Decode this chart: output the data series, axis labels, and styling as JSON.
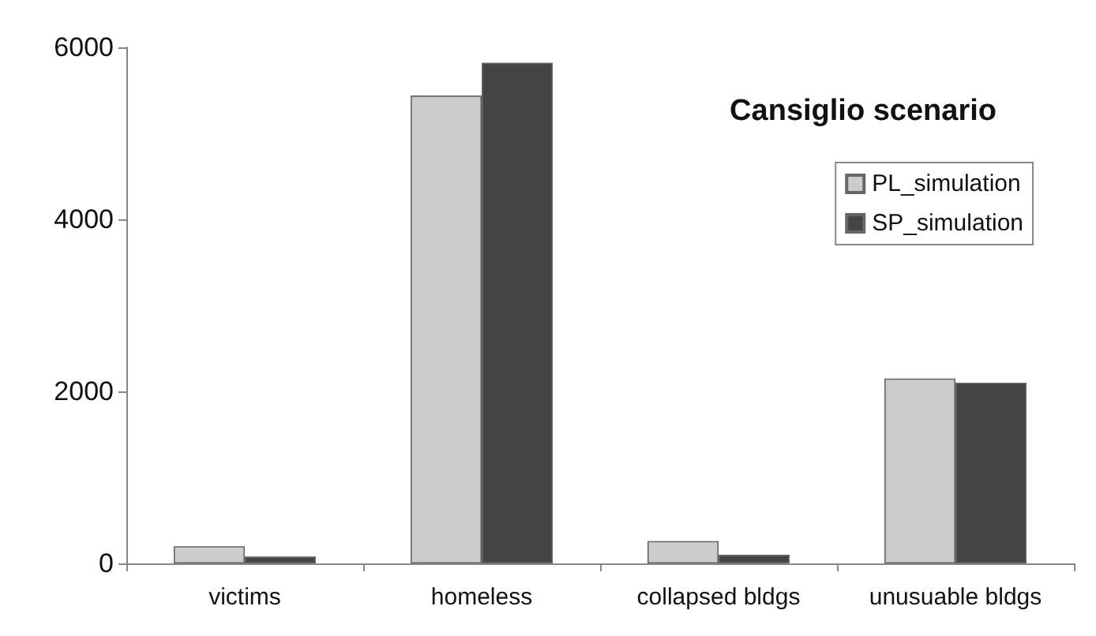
{
  "chart_data": {
    "type": "bar",
    "title": "Cansiglio scenario",
    "categories": [
      "victims",
      "homeless",
      "collapsed bldgs",
      "unusuable bldgs"
    ],
    "series": [
      {
        "name": "PL_simulation",
        "color": "#cccccc",
        "values": [
          200,
          5440,
          260,
          2150
        ]
      },
      {
        "name": "SP_simulation",
        "color": "#444444",
        "values": [
          80,
          5820,
          100,
          2100
        ]
      }
    ],
    "ylim": [
      0,
      6000
    ],
    "yticks": [
      0,
      2000,
      4000,
      6000
    ],
    "grid": false,
    "legend": "top right"
  }
}
